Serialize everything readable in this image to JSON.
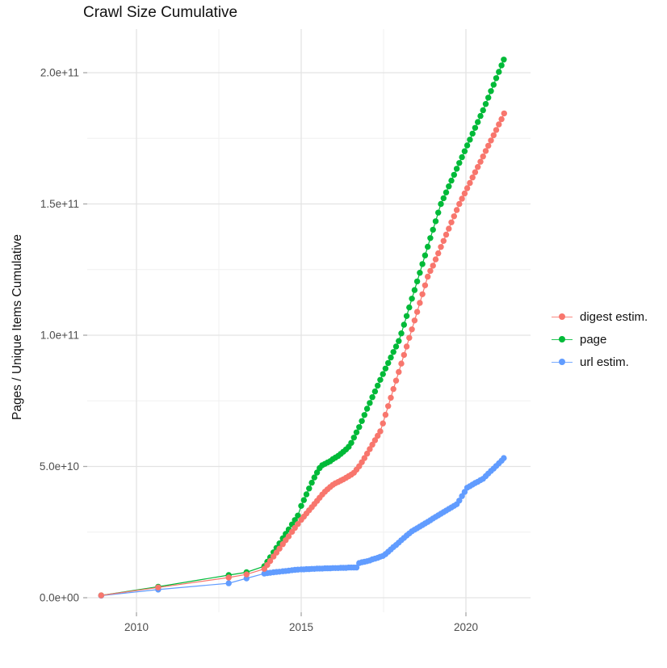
{
  "chart_data": {
    "type": "scatter",
    "title": "Crawl Size Cumulative",
    "xlabel": "",
    "ylabel": "Pages / Unique Items Cumulative",
    "grid": true,
    "legend_position": "right",
    "legend_title": "",
    "x_ticks": [
      {
        "value": 2010,
        "label": "2010"
      },
      {
        "value": 2015,
        "label": "2015"
      },
      {
        "value": 2020,
        "label": "2020"
      }
    ],
    "x_minor_ticks": [
      2012.5,
      2017.5
    ],
    "y_ticks": [
      {
        "value": 0,
        "label": "0.0e+00"
      },
      {
        "value": 50,
        "label": "5.0e+10"
      },
      {
        "value": 100,
        "label": "1.0e+11"
      },
      {
        "value": 150,
        "label": "1.5e+11"
      },
      {
        "value": 200,
        "label": "2.0e+11"
      }
    ],
    "y_minor_ticks": [
      25,
      75,
      125,
      175
    ],
    "y_value_unit": "1e9",
    "xlim": [
      2008.5,
      2021.95
    ],
    "ylim": [
      0,
      216
    ],
    "series": [
      {
        "name": "digest estim.",
        "color": "#F8766D",
        "points": [
          [
            2008.93,
            0.9
          ],
          [
            2010.66,
            3.9
          ],
          [
            2012.8,
            7.7
          ],
          [
            2013.34,
            8.9
          ],
          [
            2013.88,
            11.0
          ],
          [
            2013.97,
            12.5
          ],
          [
            2014.06,
            14.0
          ],
          [
            2014.16,
            15.7
          ],
          [
            2014.25,
            17.2
          ],
          [
            2014.34,
            18.7
          ],
          [
            2014.44,
            20.4
          ],
          [
            2014.53,
            21.9
          ],
          [
            2014.62,
            23.4
          ],
          [
            2014.72,
            25.1
          ],
          [
            2014.81,
            26.6
          ],
          [
            2014.9,
            28.1
          ],
          [
            2015.0,
            29.7
          ],
          [
            2015.08,
            30.9
          ],
          [
            2015.16,
            32.1
          ],
          [
            2015.24,
            33.3
          ],
          [
            2015.32,
            34.5
          ],
          [
            2015.4,
            35.7
          ],
          [
            2015.48,
            36.9
          ],
          [
            2015.56,
            38.1
          ],
          [
            2015.64,
            39.3
          ],
          [
            2015.72,
            40.4
          ],
          [
            2015.8,
            41.3
          ],
          [
            2015.88,
            42.2
          ],
          [
            2015.96,
            43.0
          ],
          [
            2016.04,
            43.6
          ],
          [
            2016.12,
            44.1
          ],
          [
            2016.2,
            44.6
          ],
          [
            2016.28,
            45.1
          ],
          [
            2016.36,
            45.7
          ],
          [
            2016.44,
            46.3
          ],
          [
            2016.52,
            46.9
          ],
          [
            2016.6,
            47.6
          ],
          [
            2016.68,
            48.8
          ],
          [
            2016.76,
            50.1
          ],
          [
            2016.84,
            51.6
          ],
          [
            2016.92,
            53.2
          ],
          [
            2017.0,
            54.9
          ],
          [
            2017.08,
            56.6
          ],
          [
            2017.16,
            58.3
          ],
          [
            2017.24,
            60.0
          ],
          [
            2017.32,
            61.7
          ],
          [
            2017.4,
            63.4
          ],
          [
            2017.48,
            66.4
          ],
          [
            2017.56,
            69.7
          ],
          [
            2017.64,
            73.0
          ],
          [
            2017.72,
            76.2
          ],
          [
            2017.8,
            79.5
          ],
          [
            2017.88,
            82.7
          ],
          [
            2017.96,
            86.0
          ],
          [
            2018.04,
            89.2
          ],
          [
            2018.12,
            92.5
          ],
          [
            2018.2,
            95.7
          ],
          [
            2018.28,
            99.0
          ],
          [
            2018.36,
            102.2
          ],
          [
            2018.44,
            105.6
          ],
          [
            2018.52,
            108.9
          ],
          [
            2018.6,
            112.3
          ],
          [
            2018.68,
            115.6
          ],
          [
            2018.76,
            119.0
          ],
          [
            2018.84,
            122.3
          ],
          [
            2018.92,
            124.5
          ],
          [
            2019.0,
            126.5
          ],
          [
            2019.08,
            128.9
          ],
          [
            2019.16,
            131.2
          ],
          [
            2019.24,
            133.6
          ],
          [
            2019.32,
            135.9
          ],
          [
            2019.4,
            138.3
          ],
          [
            2019.48,
            140.6
          ],
          [
            2019.56,
            143.0
          ],
          [
            2019.64,
            145.3
          ],
          [
            2019.72,
            147.7
          ],
          [
            2019.8,
            150.0
          ],
          [
            2019.88,
            152.0
          ],
          [
            2019.96,
            154.0
          ],
          [
            2020.04,
            156.0
          ],
          [
            2020.12,
            158.0
          ],
          [
            2020.2,
            160.1
          ],
          [
            2020.28,
            162.1
          ],
          [
            2020.36,
            164.1
          ],
          [
            2020.44,
            166.1
          ],
          [
            2020.52,
            168.1
          ],
          [
            2020.6,
            170.2
          ],
          [
            2020.68,
            172.2
          ],
          [
            2020.76,
            174.2
          ],
          [
            2020.84,
            176.2
          ],
          [
            2020.92,
            178.2
          ],
          [
            2021.0,
            180.3
          ],
          [
            2021.08,
            182.3
          ],
          [
            2021.16,
            184.5
          ]
        ]
      },
      {
        "name": "page",
        "color": "#00BA38",
        "points": [
          [
            2008.93,
            0.9
          ],
          [
            2010.66,
            4.2
          ],
          [
            2012.8,
            8.6
          ],
          [
            2013.34,
            9.7
          ],
          [
            2013.88,
            12.0
          ],
          [
            2013.97,
            13.7
          ],
          [
            2014.06,
            15.4
          ],
          [
            2014.16,
            17.3
          ],
          [
            2014.25,
            19.0
          ],
          [
            2014.34,
            20.7
          ],
          [
            2014.44,
            22.6
          ],
          [
            2014.53,
            24.3
          ],
          [
            2014.62,
            26.0
          ],
          [
            2014.72,
            27.9
          ],
          [
            2014.81,
            29.6
          ],
          [
            2014.9,
            31.3
          ],
          [
            2015.0,
            35.0
          ],
          [
            2015.08,
            37.2
          ],
          [
            2015.16,
            39.4
          ],
          [
            2015.24,
            41.6
          ],
          [
            2015.32,
            43.8
          ],
          [
            2015.4,
            45.8
          ],
          [
            2015.48,
            47.7
          ],
          [
            2015.56,
            49.4
          ],
          [
            2015.64,
            50.5
          ],
          [
            2015.72,
            51.0
          ],
          [
            2015.8,
            51.5
          ],
          [
            2015.88,
            52.0
          ],
          [
            2015.96,
            52.8
          ],
          [
            2016.04,
            53.4
          ],
          [
            2016.12,
            54.0
          ],
          [
            2016.2,
            54.8
          ],
          [
            2016.28,
            55.6
          ],
          [
            2016.36,
            56.5
          ],
          [
            2016.44,
            57.5
          ],
          [
            2016.52,
            59.0
          ],
          [
            2016.6,
            61.0
          ],
          [
            2016.68,
            63.0
          ],
          [
            2016.76,
            65.0
          ],
          [
            2016.84,
            67.3
          ],
          [
            2016.92,
            69.6
          ],
          [
            2017.0,
            72.0
          ],
          [
            2017.08,
            74.2
          ],
          [
            2017.16,
            76.4
          ],
          [
            2017.24,
            78.6
          ],
          [
            2017.32,
            80.8
          ],
          [
            2017.4,
            83.0
          ],
          [
            2017.48,
            85.2
          ],
          [
            2017.56,
            87.3
          ],
          [
            2017.64,
            89.4
          ],
          [
            2017.72,
            91.5
          ],
          [
            2017.8,
            93.6
          ],
          [
            2017.88,
            95.7
          ],
          [
            2017.96,
            97.8
          ],
          [
            2018.04,
            100.7
          ],
          [
            2018.12,
            104.0
          ],
          [
            2018.2,
            107.3
          ],
          [
            2018.28,
            110.6
          ],
          [
            2018.36,
            113.9
          ],
          [
            2018.44,
            117.2
          ],
          [
            2018.52,
            120.5
          ],
          [
            2018.6,
            123.8
          ],
          [
            2018.68,
            127.1
          ],
          [
            2018.76,
            130.4
          ],
          [
            2018.84,
            133.7
          ],
          [
            2018.92,
            137.0
          ],
          [
            2019.0,
            140.2
          ],
          [
            2019.08,
            143.4
          ],
          [
            2019.16,
            146.7
          ],
          [
            2019.24,
            150.0
          ],
          [
            2019.32,
            152.2
          ],
          [
            2019.4,
            154.4
          ],
          [
            2019.48,
            156.7
          ],
          [
            2019.56,
            158.9
          ],
          [
            2019.64,
            161.1
          ],
          [
            2019.72,
            163.4
          ],
          [
            2019.8,
            165.6
          ],
          [
            2019.88,
            167.8
          ],
          [
            2019.96,
            170.1
          ],
          [
            2020.04,
            172.3
          ],
          [
            2020.12,
            174.5
          ],
          [
            2020.2,
            176.8
          ],
          [
            2020.28,
            179.0
          ],
          [
            2020.36,
            181.2
          ],
          [
            2020.44,
            183.5
          ],
          [
            2020.52,
            185.7
          ],
          [
            2020.6,
            188.1
          ],
          [
            2020.68,
            190.5
          ],
          [
            2020.76,
            193.0
          ],
          [
            2020.84,
            195.4
          ],
          [
            2020.92,
            197.9
          ],
          [
            2021.0,
            200.3
          ],
          [
            2021.08,
            202.8
          ],
          [
            2021.15,
            205.0
          ]
        ]
      },
      {
        "name": "url estim.",
        "color": "#619CFF",
        "points": [
          [
            2008.93,
            0.8
          ],
          [
            2010.66,
            3.1
          ],
          [
            2012.8,
            5.5
          ],
          [
            2013.34,
            7.4
          ],
          [
            2013.88,
            9.2
          ],
          [
            2013.97,
            9.4
          ],
          [
            2014.06,
            9.5
          ],
          [
            2014.16,
            9.7
          ],
          [
            2014.25,
            9.8
          ],
          [
            2014.34,
            9.9
          ],
          [
            2014.44,
            10.1
          ],
          [
            2014.53,
            10.2
          ],
          [
            2014.62,
            10.3
          ],
          [
            2014.72,
            10.5
          ],
          [
            2014.81,
            10.6
          ],
          [
            2014.9,
            10.7
          ],
          [
            2015.0,
            10.8
          ],
          [
            2015.08,
            10.8
          ],
          [
            2015.16,
            10.9
          ],
          [
            2015.24,
            10.9
          ],
          [
            2015.32,
            11.0
          ],
          [
            2015.4,
            11.0
          ],
          [
            2015.48,
            11.1
          ],
          [
            2015.56,
            11.1
          ],
          [
            2015.64,
            11.1
          ],
          [
            2015.72,
            11.2
          ],
          [
            2015.8,
            11.2
          ],
          [
            2015.88,
            11.2
          ],
          [
            2015.96,
            11.3
          ],
          [
            2016.04,
            11.3
          ],
          [
            2016.12,
            11.3
          ],
          [
            2016.2,
            11.4
          ],
          [
            2016.28,
            11.4
          ],
          [
            2016.36,
            11.4
          ],
          [
            2016.44,
            11.5
          ],
          [
            2016.52,
            11.5
          ],
          [
            2016.6,
            11.5
          ],
          [
            2016.68,
            11.5
          ],
          [
            2016.76,
            13.2
          ],
          [
            2016.84,
            13.5
          ],
          [
            2016.92,
            13.7
          ],
          [
            2017.0,
            13.9
          ],
          [
            2017.08,
            14.2
          ],
          [
            2017.16,
            14.6
          ],
          [
            2017.24,
            14.9
          ],
          [
            2017.32,
            15.2
          ],
          [
            2017.4,
            15.6
          ],
          [
            2017.48,
            15.9
          ],
          [
            2017.56,
            16.6
          ],
          [
            2017.64,
            17.5
          ],
          [
            2017.72,
            18.4
          ],
          [
            2017.8,
            19.3
          ],
          [
            2017.88,
            20.1
          ],
          [
            2017.96,
            21.0
          ],
          [
            2018.04,
            21.9
          ],
          [
            2018.12,
            22.8
          ],
          [
            2018.2,
            23.7
          ],
          [
            2018.28,
            24.5
          ],
          [
            2018.36,
            25.3
          ],
          [
            2018.44,
            25.9
          ],
          [
            2018.52,
            26.5
          ],
          [
            2018.6,
            27.1
          ],
          [
            2018.68,
            27.7
          ],
          [
            2018.76,
            28.3
          ],
          [
            2018.84,
            28.9
          ],
          [
            2018.92,
            29.5
          ],
          [
            2019.0,
            30.2
          ],
          [
            2019.08,
            30.8
          ],
          [
            2019.16,
            31.4
          ],
          [
            2019.24,
            32.0
          ],
          [
            2019.32,
            32.6
          ],
          [
            2019.4,
            33.2
          ],
          [
            2019.48,
            33.8
          ],
          [
            2019.56,
            34.4
          ],
          [
            2019.64,
            35.0
          ],
          [
            2019.72,
            35.6
          ],
          [
            2019.8,
            37.0
          ],
          [
            2019.88,
            38.7
          ],
          [
            2019.96,
            40.3
          ],
          [
            2020.04,
            41.9
          ],
          [
            2020.12,
            42.5
          ],
          [
            2020.2,
            43.1
          ],
          [
            2020.28,
            43.7
          ],
          [
            2020.36,
            44.2
          ],
          [
            2020.44,
            44.8
          ],
          [
            2020.52,
            45.3
          ],
          [
            2020.6,
            46.3
          ],
          [
            2020.68,
            47.3
          ],
          [
            2020.76,
            48.3
          ],
          [
            2020.84,
            49.2
          ],
          [
            2020.92,
            50.2
          ],
          [
            2021.0,
            51.2
          ],
          [
            2021.08,
            52.2
          ],
          [
            2021.15,
            53.2
          ]
        ]
      }
    ]
  },
  "colors": {
    "background": "#FFFFFF",
    "grid_major": "#E3E3E3",
    "grid_minor": "#F0F0F0",
    "tick_mark": "#A8A8A8",
    "tick_label": "#4D4D4D",
    "text": "#111111"
  }
}
